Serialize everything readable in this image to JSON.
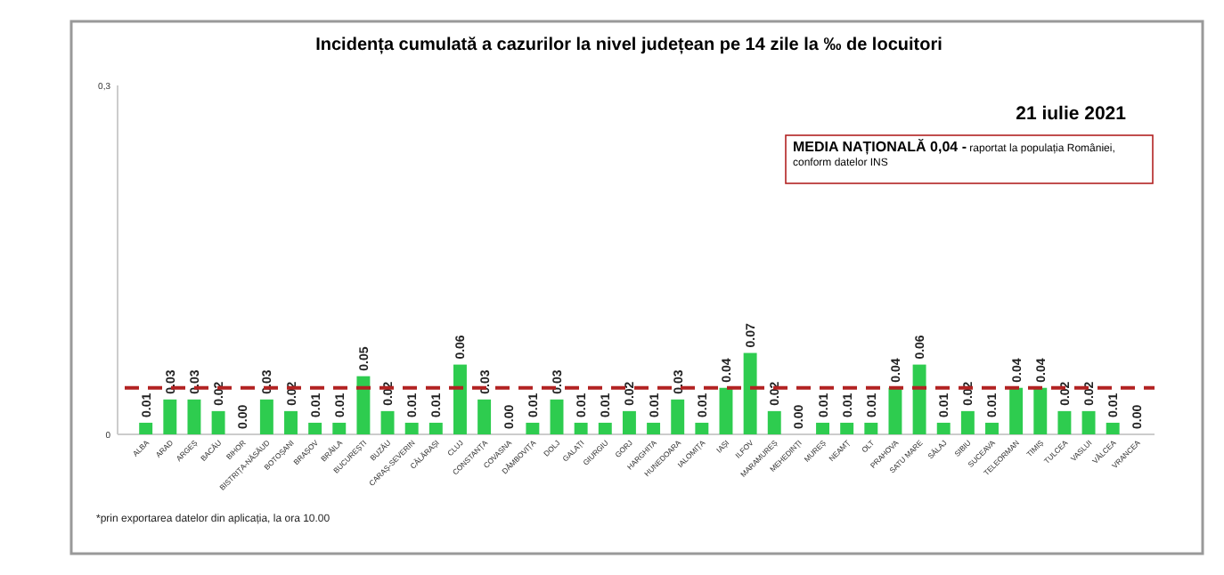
{
  "chart_data": {
    "type": "bar",
    "title": "Incidența cumulată a cazurilor la nivel județean pe 14 zile  la ‰ de locuitori",
    "subtitle": "21 iulie 2021",
    "categories": [
      "ALBA",
      "ARAD",
      "ARGEȘ",
      "BACĂU",
      "BIHOR",
      "BISTRIȚA-NĂSĂUD",
      "BOTOȘANI",
      "BRAȘOV",
      "BRĂILA",
      "BUCUREȘTI",
      "BUZĂU",
      "CARAȘ-SEVERIN",
      "CĂLĂRAȘI",
      "CLUJ",
      "CONSTANȚA",
      "COVASNA",
      "DÂMBOVIȚA",
      "DOLJ",
      "GALAȚI",
      "GIURGIU",
      "GORJ",
      "HARGHITA",
      "HUNEDOARA",
      "IALOMIȚA",
      "IAȘI",
      "ILFOV",
      "MARAMUREȘ",
      "MEHEDINȚI",
      "MUREȘ",
      "NEAMȚ",
      "OLT",
      "PRAHOVA",
      "SATU MARE",
      "SĂLAJ",
      "SIBIU",
      "SUCEAVA",
      "TELEORMAN",
      "TIMIȘ",
      "TULCEA",
      "VASLUI",
      "VÂLCEA",
      "VRANCEA"
    ],
    "values": [
      0.01,
      0.03,
      0.03,
      0.02,
      0.0,
      0.03,
      0.02,
      0.01,
      0.01,
      0.05,
      0.02,
      0.01,
      0.01,
      0.06,
      0.03,
      0.0,
      0.01,
      0.03,
      0.01,
      0.01,
      0.02,
      0.01,
      0.03,
      0.01,
      0.04,
      0.07,
      0.02,
      0.0,
      0.01,
      0.01,
      0.01,
      0.04,
      0.06,
      0.01,
      0.02,
      0.01,
      0.04,
      0.04,
      0.02,
      0.02,
      0.01,
      0.0
    ],
    "color": "#2ecc4f",
    "value_labels": [
      "0.01",
      "0.03",
      "0.03",
      "0.02",
      "0.00",
      "0.03",
      "0.02",
      "0.01",
      "0.01",
      "0.05",
      "0.02",
      "0.01",
      "0.01",
      "0.06",
      "0.03",
      "0.00",
      "0.01",
      "0.03",
      "0.01",
      "0.01",
      "0.02",
      "0.01",
      "0.03",
      "0.01",
      "0.04",
      "0.07",
      "0.02",
      "0.00",
      "0.01",
      "0.01",
      "0.01",
      "0.04",
      "0.06",
      "0.01",
      "0.02",
      "0.01",
      "0.04",
      "0.04",
      "0.02",
      "0.02",
      "0.01",
      "0.00"
    ],
    "ylim": [
      0,
      0.3
    ],
    "yticks": [
      0,
      {
        "value": 0.3,
        "label": "0,3"
      }
    ],
    "grid": false,
    "ref_lines": [
      {
        "axis": "y",
        "value": 0.04,
        "label": "MEDIA NAȚIONALĂ  0,04 - raportat la populația României, conform datelor INS",
        "color": "#b22222",
        "line_style": "dashed"
      }
    ],
    "annotations": [
      "*prin exportarea datelor din aplicația, la ora 10.00"
    ]
  }
}
